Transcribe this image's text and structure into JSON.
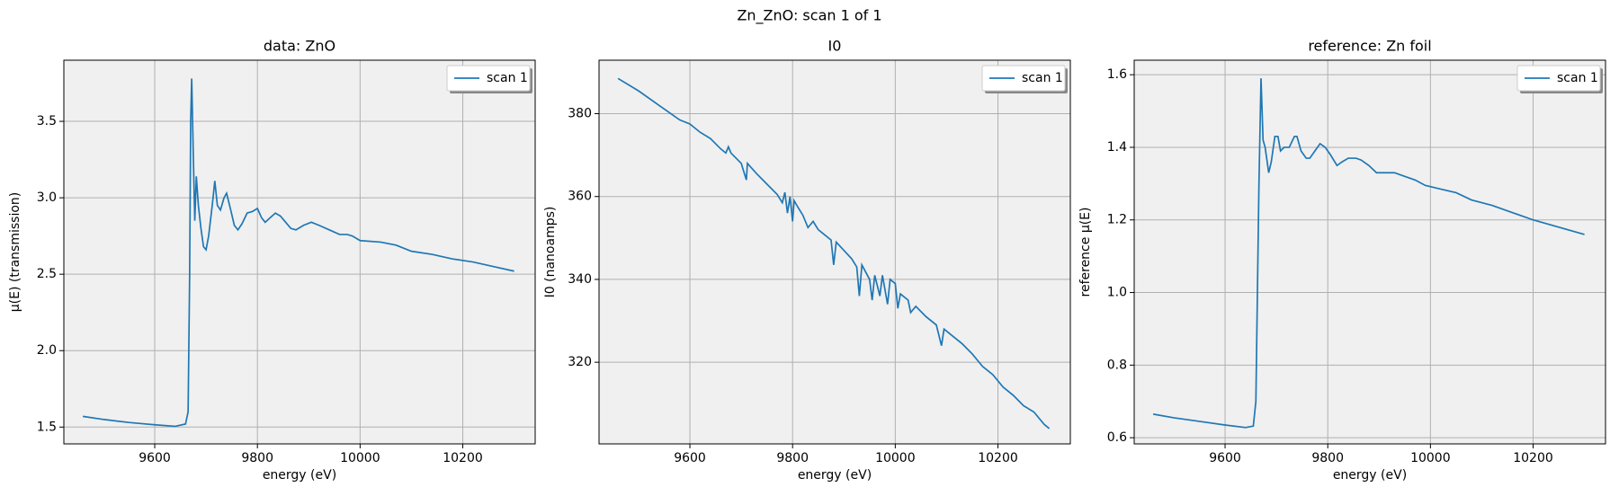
{
  "title": "Zn_ZnO: scan 1 of 1",
  "chart_data": [
    {
      "type": "line",
      "title": "data: ZnO",
      "xlabel": "energy (eV)",
      "ylabel": "μ(E) (transmission)",
      "xlim": [
        9423,
        10341
      ],
      "ylim": [
        1.39,
        3.9
      ],
      "xticks": [
        9600,
        9800,
        10000,
        10200
      ],
      "yticks": [
        1.5,
        {
          "value": 2,
          "label": "2.0"
        },
        2.5,
        {
          "value": 3,
          "label": "3.0"
        },
        3.5
      ],
      "grid": true,
      "legend": "upper right",
      "x": [
        9460,
        9500,
        9550,
        9600,
        9640,
        9660,
        9665,
        9668,
        9670,
        9672,
        9675,
        9678,
        9681,
        9685,
        9690,
        9695,
        9700,
        9705,
        9712,
        9717,
        9722,
        9728,
        9735,
        9740,
        9748,
        9755,
        9762,
        9770,
        9780,
        9790,
        9800,
        9808,
        9815,
        9825,
        9835,
        9845,
        9855,
        9865,
        9875,
        9890,
        9905,
        9920,
        9940,
        9960,
        9975,
        9985,
        10000,
        10040,
        10070,
        10100,
        10140,
        10180,
        10220,
        10260,
        10300
      ],
      "series": [
        {
          "name": "scan 1",
          "color": "#1f77b4",
          "values": [
            1.57,
            1.55,
            1.53,
            1.515,
            1.505,
            1.52,
            1.6,
            2.5,
            3.5,
            3.78,
            3.3,
            2.85,
            3.14,
            2.95,
            2.8,
            2.68,
            2.66,
            2.75,
            2.95,
            3.11,
            2.95,
            2.92,
            3.0,
            3.03,
            2.92,
            2.82,
            2.79,
            2.83,
            2.9,
            2.91,
            2.93,
            2.87,
            2.84,
            2.87,
            2.9,
            2.88,
            2.84,
            2.8,
            2.79,
            2.82,
            2.84,
            2.82,
            2.79,
            2.76,
            2.76,
            2.75,
            2.72,
            2.71,
            2.69,
            2.65,
            2.63,
            2.6,
            2.58,
            2.55,
            2.52
          ]
        }
      ]
    },
    {
      "type": "line",
      "title": "I0",
      "xlabel": "energy (eV)",
      "ylabel": "I0 (nanoamps)",
      "xlim": [
        9423,
        10341
      ],
      "ylim": [
        300.3,
        392.9
      ],
      "xticks": [
        9600,
        9800,
        10000,
        10200
      ],
      "yticks": [
        320,
        340,
        360,
        380
      ],
      "grid": true,
      "legend": "upper right",
      "x": [
        9460,
        9500,
        9540,
        9580,
        9600,
        9620,
        9640,
        9660,
        9670,
        9675,
        9680,
        9700,
        9710,
        9712,
        9730,
        9750,
        9770,
        9780,
        9785,
        9790,
        9795,
        9800,
        9803,
        9810,
        9820,
        9830,
        9840,
        9850,
        9860,
        9875,
        9880,
        9885,
        9900,
        9915,
        9925,
        9930,
        9935,
        9950,
        9955,
        9960,
        9970,
        9975,
        9985,
        9990,
        10000,
        10005,
        10010,
        10025,
        10030,
        10040,
        10060,
        10080,
        10090,
        10095,
        10110,
        10130,
        10150,
        10170,
        10190,
        10210,
        10230,
        10250,
        10270,
        10290,
        10300
      ],
      "series": [
        {
          "name": "scan 1",
          "color": "#1f77b4",
          "values": [
            388.5,
            385.5,
            382,
            378.5,
            377.5,
            375.5,
            374,
            371.5,
            370.5,
            372,
            370.5,
            368,
            364,
            368,
            365.5,
            363,
            360.5,
            358.5,
            361,
            356,
            360,
            354,
            359,
            357.5,
            355.5,
            352.5,
            354,
            352,
            351,
            349.5,
            343.5,
            349,
            347,
            345,
            343,
            336,
            343.5,
            340,
            335,
            341,
            336,
            341,
            334,
            340,
            339,
            333,
            336.5,
            335,
            332,
            333.5,
            331,
            329,
            324,
            328,
            326.5,
            324.5,
            322,
            319,
            317,
            314,
            312,
            309.5,
            308,
            305,
            304
          ]
        }
      ]
    },
    {
      "type": "line",
      "title": "reference: Zn foil",
      "xlabel": "energy (eV)",
      "ylabel": "reference μ(E)",
      "xlim": [
        9423,
        10341
      ],
      "ylim": [
        0.583,
        1.64
      ],
      "xticks": [
        9600,
        9800,
        10000,
        10200
      ],
      "yticks": [
        0.6,
        0.8,
        {
          "value": 1,
          "label": "1.0"
        },
        1.2,
        1.4,
        1.6
      ],
      "grid": true,
      "legend": "upper right",
      "x": [
        9460,
        9500,
        9550,
        9600,
        9640,
        9655,
        9660,
        9663,
        9666,
        9670,
        9674,
        9678,
        9685,
        9690,
        9697,
        9703,
        9708,
        9715,
        9725,
        9735,
        9740,
        9748,
        9758,
        9765,
        9775,
        9785,
        9795,
        9805,
        9818,
        9828,
        9840,
        9855,
        9865,
        9880,
        9895,
        9910,
        9930,
        9950,
        9970,
        9990,
        10020,
        10050,
        10080,
        10120,
        10160,
        10180,
        10200,
        10250,
        10300
      ],
      "series": [
        {
          "name": "scan 1",
          "color": "#1f77b4",
          "values": [
            0.665,
            0.655,
            0.645,
            0.635,
            0.628,
            0.632,
            0.7,
            1.0,
            1.3,
            1.59,
            1.42,
            1.4,
            1.33,
            1.36,
            1.43,
            1.43,
            1.39,
            1.4,
            1.4,
            1.43,
            1.43,
            1.39,
            1.37,
            1.37,
            1.39,
            1.41,
            1.4,
            1.38,
            1.35,
            1.36,
            1.37,
            1.37,
            1.365,
            1.35,
            1.33,
            1.33,
            1.33,
            1.32,
            1.31,
            1.295,
            1.285,
            1.275,
            1.255,
            1.24,
            1.22,
            1.21,
            1.2,
            1.18,
            1.16
          ]
        }
      ]
    }
  ]
}
